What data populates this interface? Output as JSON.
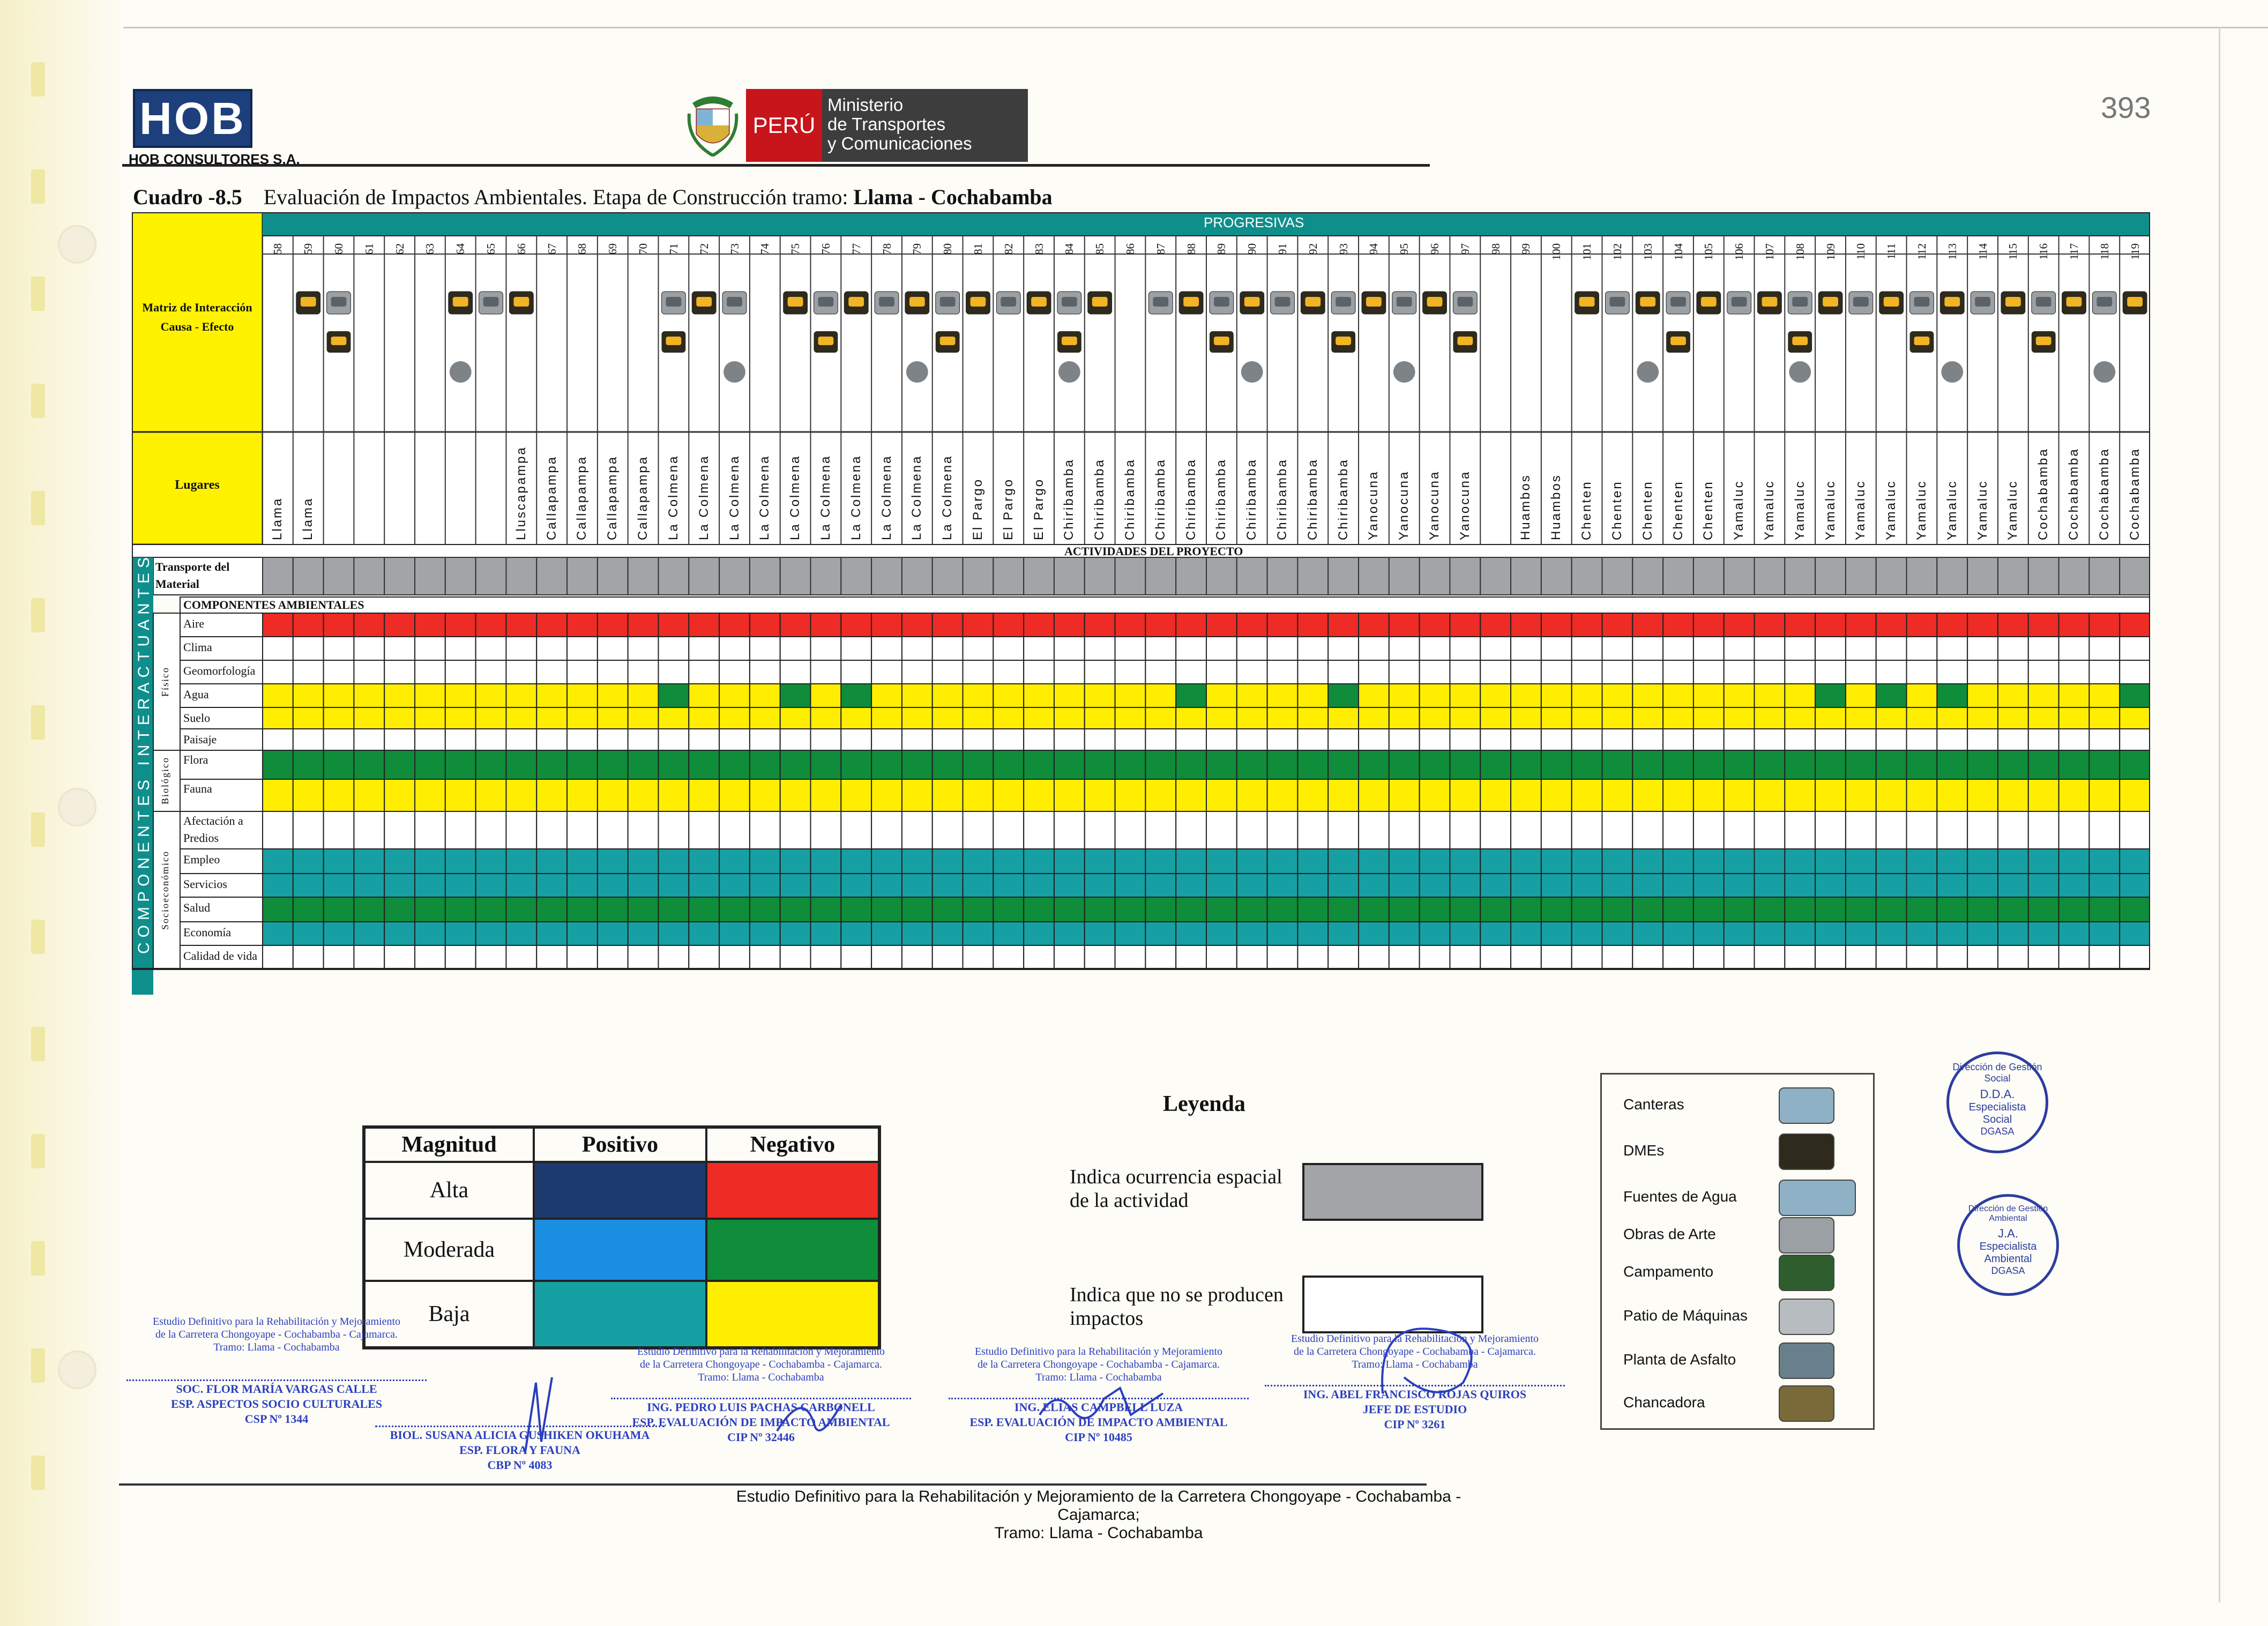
{
  "header": {
    "company_logo": "HOB",
    "company_name": "HOB CONSULTORES S.A.",
    "ministry_country": "PERÚ",
    "ministry_name": [
      "Ministerio",
      "de Transportes",
      "y Comunicaciones"
    ],
    "page_number": "393"
  },
  "title": {
    "table_label": "Cuadro -8.5",
    "text": "Evaluación de Impactos Ambientales. Etapa de Construcción tramo:",
    "tramo": "Llama - Cochabamba"
  },
  "matrix": {
    "progresivas_label": "PROGRESIVAS",
    "matrix_label": [
      "Matriz de Interacción",
      "Causa - Efecto"
    ],
    "places_label": "Lugares",
    "activities_label": "ACTIVIDADES DEL PROYECTO",
    "activity": [
      "Transporte del",
      "Material"
    ],
    "components_label": "COMPONENTES AMBIENTALES",
    "side_label": "COMPONENTES INTERACTUANTES",
    "groups": [
      "Físico",
      "Biológico",
      "Socioeconómico"
    ],
    "progresivas": [
      "58",
      "59",
      "60",
      "61",
      "62",
      "63",
      "64",
      "65",
      "66",
      "67",
      "68",
      "69",
      "70",
      "71",
      "72",
      "73",
      "74",
      "75",
      "76",
      "77",
      "78",
      "79",
      "80",
      "81",
      "82",
      "83",
      "84",
      "85",
      "86",
      "87",
      "88",
      "89",
      "90",
      "91",
      "92",
      "93",
      "94",
      "95",
      "96",
      "97",
      "98",
      "99",
      "100",
      "101",
      "102",
      "103",
      "104",
      "105",
      "106",
      "107",
      "108",
      "109",
      "110",
      "111",
      "112",
      "113",
      "114",
      "115",
      "116",
      "117",
      "118",
      "119"
    ],
    "lugares": [
      "Llama",
      "Llama",
      "",
      "",
      "",
      "",
      "",
      "",
      "Lluscapampa",
      "Callapampa",
      "Callapampa",
      "Callapampa",
      "Callapampa",
      "La Colmena",
      "La Colmena",
      "La Colmena",
      "La Colmena",
      "La Colmena",
      "La Colmena",
      "La Colmena",
      "La Colmena",
      "La Colmena",
      "La Colmena",
      "El Pargo",
      "El Pargo",
      "El Pargo",
      "Chiribamba",
      "Chiribamba",
      "Chiribamba",
      "Chiribamba",
      "Chiribamba",
      "Chiribamba",
      "Chiribamba",
      "Chiribamba",
      "Chiribamba",
      "Chiribamba",
      "Yanocuna",
      "Yanocuna",
      "Yanocuna",
      "Yanocuna",
      "",
      "Huambos",
      "Huambos",
      "Chenten",
      "Chenten",
      "Chenten",
      "Chenten",
      "Chenten",
      "Yamaluc",
      "Yamaluc",
      "Yamaluc",
      "Yamaluc",
      "Yamaluc",
      "Yamaluc",
      "Yamaluc",
      "Yamaluc",
      "Yamaluc",
      "Yamaluc",
      "Cochabamba",
      "Cochabamba",
      "Cochabamba",
      "Cochabamba"
    ],
    "components": [
      "Aire",
      "Clima",
      "Geomorfología",
      "Agua",
      "Suelo",
      "Paisaje",
      "Flora",
      "Fauna",
      "Afectación a Predios",
      "Empleo",
      "Servicios",
      "Salud",
      "Economía",
      "Calidad de vida"
    ],
    "icons": {
      "agua_green_columns": [
        13,
        17,
        19,
        30,
        35,
        51,
        53,
        55,
        61
      ],
      "description": "icon-pictograms-per-column"
    }
  },
  "legend": {
    "title": "Leyenda",
    "magnitude_header": [
      "Magnitud",
      "Positivo",
      "Negativo"
    ],
    "levels": [
      "Alta",
      "Moderada",
      "Baja"
    ],
    "colors": {
      "pos_alta": "#1c3a6e",
      "neg_alta": "#ee2b25",
      "pos_mod": "#1a8ee0",
      "neg_mod": "#0f8d3a",
      "pos_baja": "#17a0a3",
      "neg_baja": "#ffee00",
      "occurrence": "#a3a4a7"
    },
    "occurrence_text": "Indica ocurrencia espacial de la actividad",
    "no_impact_text": "Indica que no se producen impactos",
    "icon_items": [
      "Canteras",
      "DMEs",
      "Fuentes de Agua",
      "Obras de Arte",
      "Campamento",
      "Patio de Máquinas",
      "Planta de Asfalto",
      "Chancadora"
    ]
  },
  "stamps": [
    {
      "top": "Dirección de Gestión Social",
      "center": [
        "D.D.A.",
        "Especialista",
        "Social"
      ],
      "bottom": "DGASA"
    },
    {
      "top": "Dirección de Gestión Ambiental",
      "center": [
        "J.A.",
        "Especialista",
        "Ambiental"
      ],
      "bottom": "DGASA"
    }
  ],
  "signatures": [
    {
      "study": [
        "Estudio Definitivo para la Rehabilitación y Mejoramiento",
        "de la Carretera Chongoyape - Cochabamba - Cajamarca.",
        "Tramo: Llama - Cochabamba"
      ],
      "name": [
        "SOC. FLOR MARÍA VARGAS CALLE",
        "ESP. ASPECTOS SOCIO CULTURALES",
        "CSP Nº 1344"
      ]
    },
    {
      "name": [
        "BIOL. SUSANA ALICIA GUSHIKEN OKUHAMA",
        "ESP. FLORA Y FAUNA",
        "CBP Nº 4083"
      ]
    },
    {
      "study": [
        "Estudio Definitivo para la Rehabilitación y Mejoramiento",
        "de la Carretera Chongoyape - Cochabamba - Cajamarca.",
        "Tramo: Llama - Cochabamba"
      ],
      "name": [
        "ING. PEDRO LUIS PACHAS CARBONELL",
        "ESP. EVALUACIÓN DE IMPACTO AMBIENTAL",
        "CIP Nº 32446"
      ]
    },
    {
      "study": [
        "Estudio Definitivo para la Rehabilitación y Mejoramiento",
        "de la Carretera Chongoyape - Cochabamba - Cajamarca.",
        "Tramo: Llama - Cochabamba"
      ],
      "name": [
        "ING. ELIAS CAMPBELL LUZA",
        "ESP. EVALUACIÓN DE IMPACTO AMBIENTAL",
        "CIP Nº 10485"
      ]
    },
    {
      "study": [
        "Estudio Definitivo para la Rehabilitación y Mejoramiento",
        "de la Carretera Chongoyape - Cochabamba - Cajamarca.",
        "Tramo: Llama - Cochabamba"
      ],
      "name": [
        "ING. ABEL FRANCISCO ROJAS QUIROS",
        "JEFE DE ESTUDIO",
        "CIP Nº 3261"
      ]
    }
  ],
  "footer": [
    "Estudio Definitivo para la Rehabilitación y Mejoramiento de la Carretera Chongoyape - Cochabamba - Cajamarca;",
    "Tramo:  Llama - Cochabamba"
  ]
}
